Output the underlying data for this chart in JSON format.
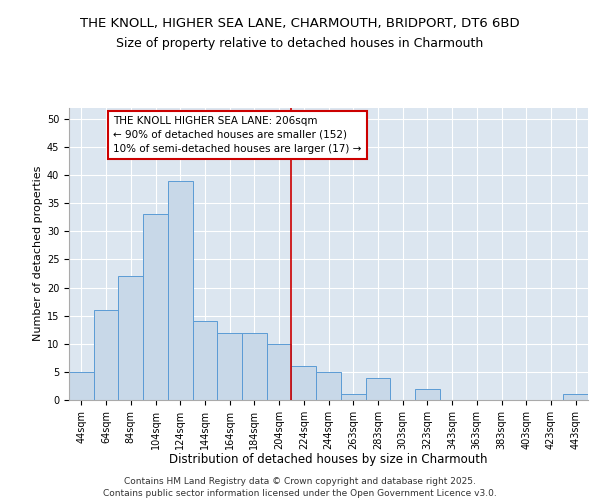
{
  "title": "THE KNOLL, HIGHER SEA LANE, CHARMOUTH, BRIDPORT, DT6 6BD",
  "subtitle": "Size of property relative to detached houses in Charmouth",
  "xlabel": "Distribution of detached houses by size in Charmouth",
  "ylabel": "Number of detached properties",
  "categories": [
    "44sqm",
    "64sqm",
    "84sqm",
    "104sqm",
    "124sqm",
    "144sqm",
    "164sqm",
    "184sqm",
    "204sqm",
    "224sqm",
    "244sqm",
    "263sqm",
    "283sqm",
    "303sqm",
    "323sqm",
    "343sqm",
    "363sqm",
    "383sqm",
    "403sqm",
    "423sqm",
    "443sqm"
  ],
  "values": [
    5,
    16,
    22,
    33,
    39,
    14,
    12,
    12,
    10,
    6,
    5,
    1,
    4,
    0,
    2,
    0,
    0,
    0,
    0,
    0,
    1
  ],
  "bar_color": "#c8d8e8",
  "bar_edge_color": "#5b9bd5",
  "vline_x_index": 8.5,
  "vline_color": "#cc0000",
  "annotation_text": "THE KNOLL HIGHER SEA LANE: 206sqm\n← 90% of detached houses are smaller (152)\n10% of semi-detached houses are larger (17) →",
  "annotation_box_color": "#ffffff",
  "annotation_box_edge": "#cc0000",
  "ylim": [
    0,
    52
  ],
  "yticks": [
    0,
    5,
    10,
    15,
    20,
    25,
    30,
    35,
    40,
    45,
    50
  ],
  "background_color": "#dce6f0",
  "grid_color": "#ffffff",
  "footer_text": "Contains HM Land Registry data © Crown copyright and database right 2025.\nContains public sector information licensed under the Open Government Licence v3.0.",
  "title_fontsize": 9.5,
  "subtitle_fontsize": 9,
  "xlabel_fontsize": 8.5,
  "ylabel_fontsize": 8,
  "tick_fontsize": 7,
  "annotation_fontsize": 7.5,
  "footer_fontsize": 6.5
}
